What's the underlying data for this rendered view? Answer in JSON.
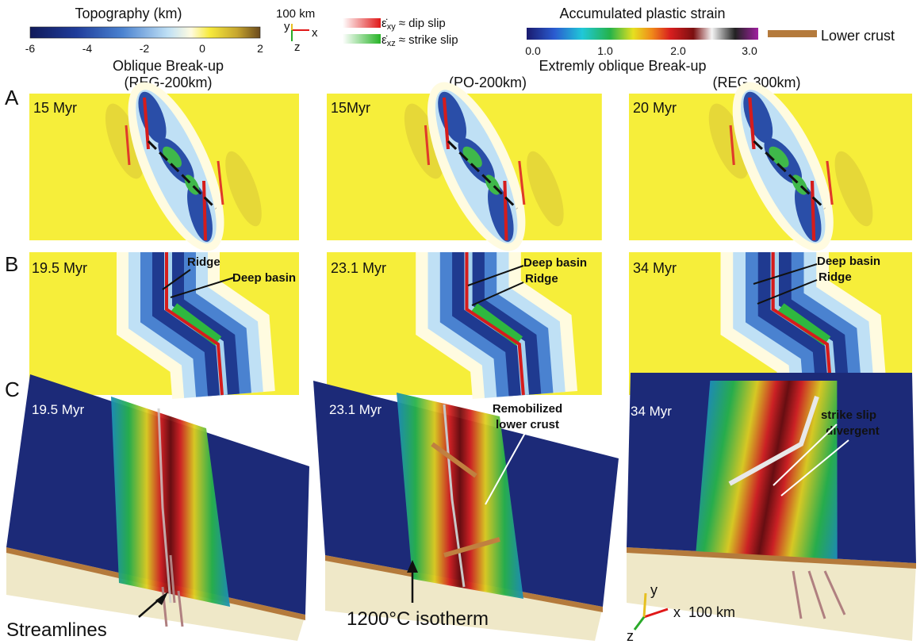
{
  "legend": {
    "topography": {
      "title": "Topography (km)",
      "ticks": [
        "-6",
        "-4",
        "-2",
        "0",
        "2"
      ]
    },
    "axes": {
      "scale": "100 km",
      "y": "y",
      "x": "x",
      "z": "z"
    },
    "strain_rate": [
      {
        "symbol": "ε̇",
        "subscript": "xy",
        "meaning": "≈ dip slip"
      },
      {
        "symbol": "ε̇",
        "subscript": "xz",
        "meaning": "≈ strike slip"
      }
    ],
    "plastic_strain": {
      "title": "Accumulated plastic strain",
      "ticks": [
        "0.0",
        "1.0",
        "2.0",
        "3.0"
      ]
    },
    "lower_crust": "Lower crust"
  },
  "columns": [
    {
      "title": "Oblique Break-up",
      "model": "(REG-200km)"
    },
    {
      "title": "Extremly oblique Break-up",
      "model": "(PO-200km)"
    },
    {
      "model": "(REG-300km)"
    }
  ],
  "rows": [
    "A",
    "B",
    "C"
  ],
  "panels": {
    "A": [
      "15 Myr",
      "15Myr",
      "20 Myr"
    ],
    "B": [
      {
        "time": "19.5 Myr",
        "labels": [
          "Ridge",
          "Deep basin"
        ]
      },
      {
        "time": "23.1 Myr",
        "labels": [
          "Deep basin",
          "Ridge"
        ]
      },
      {
        "time": "34 Myr",
        "labels": [
          "Deep basin",
          "Ridge"
        ]
      }
    ],
    "C": [
      {
        "time": "19.5 Myr",
        "note": "Streamlines"
      },
      {
        "time": "23.1 Myr",
        "labels": [
          "Remobilized",
          "lower crust"
        ],
        "note": "1200°C isotherm"
      },
      {
        "time": "34 Myr",
        "labels": [
          "strike slip",
          "divergent"
        ],
        "axes": {
          "y": "y",
          "x": "x  100 km",
          "z": "z"
        }
      }
    ]
  }
}
